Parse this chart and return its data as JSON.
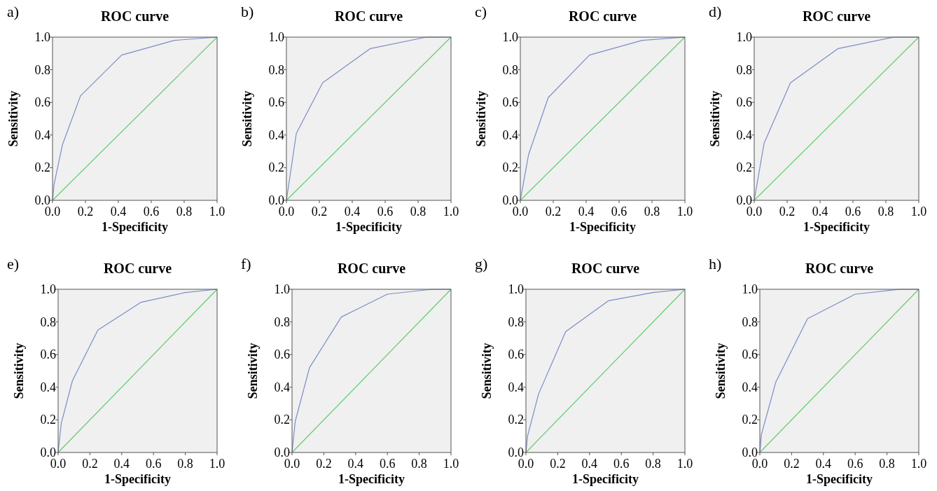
{
  "chart_data": [
    {
      "type": "line",
      "title": "ROC curve",
      "annotations": [
        "a)"
      ],
      "xlabel": "1-Specificity",
      "ylabel": "Sensitivity",
      "xlim": [
        0,
        1
      ],
      "ylim": [
        0,
        1
      ],
      "xticks": [
        {
          "value": 0,
          "label": "0.0"
        },
        {
          "value": 0.2,
          "label": "0.2"
        },
        {
          "value": 0.4,
          "label": "0.4"
        },
        {
          "value": 0.6,
          "label": "0.6"
        },
        {
          "value": 0.8,
          "label": "0.8"
        },
        {
          "value": 1,
          "label": "1.0"
        }
      ],
      "yticks": [
        {
          "value": 0,
          "label": "0.0"
        },
        {
          "value": 0.2,
          "label": "0.2"
        },
        {
          "value": 0.4,
          "label": "0.4"
        },
        {
          "value": 0.6,
          "label": "0.6"
        },
        {
          "value": 0.8,
          "label": "0.8"
        },
        {
          "value": 1,
          "label": "1.0"
        }
      ],
      "series": [
        {
          "color": "#7b8cc8",
          "x": [
            0,
            0.01,
            0.06,
            0.17,
            0.42,
            0.74,
            1
          ],
          "values": [
            0,
            0.1,
            0.34,
            0.64,
            0.89,
            0.98,
            1
          ]
        },
        {
          "color": "#62cc6c",
          "x": [
            0,
            1
          ],
          "values": [
            0,
            1
          ]
        }
      ]
    },
    {
      "type": "line",
      "title": "ROC curve",
      "annotations": [
        "b)"
      ],
      "xlabel": "1-Specificity",
      "ylabel": "Sensitivity",
      "xlim": [
        0,
        1
      ],
      "ylim": [
        0,
        1
      ],
      "xticks": [
        {
          "value": 0,
          "label": "0.0"
        },
        {
          "value": 0.2,
          "label": "0.2"
        },
        {
          "value": 0.4,
          "label": "0.4"
        },
        {
          "value": 0.6,
          "label": "0.6"
        },
        {
          "value": 0.8,
          "label": "0.8"
        },
        {
          "value": 1,
          "label": "1.0"
        }
      ],
      "yticks": [
        {
          "value": 0,
          "label": "0.0"
        },
        {
          "value": 0.2,
          "label": "0.2"
        },
        {
          "value": 0.4,
          "label": "0.4"
        },
        {
          "value": 0.6,
          "label": "0.6"
        },
        {
          "value": 0.8,
          "label": "0.8"
        },
        {
          "value": 1,
          "label": "1.0"
        }
      ],
      "series": [
        {
          "color": "#7b8cc8",
          "x": [
            0,
            0.06,
            0.22,
            0.51,
            0.85,
            1
          ],
          "values": [
            0,
            0.41,
            0.72,
            0.93,
            1,
            1
          ]
        },
        {
          "color": "#62cc6c",
          "x": [
            0,
            1
          ],
          "values": [
            0,
            1
          ]
        }
      ]
    },
    {
      "type": "line",
      "title": "ROC curve",
      "annotations": [
        "c)"
      ],
      "xlabel": "1-Specificity",
      "ylabel": "Sensitivity",
      "xlim": [
        0,
        1
      ],
      "ylim": [
        0,
        1
      ],
      "xticks": [
        {
          "value": 0,
          "label": "0.0"
        },
        {
          "value": 0.2,
          "label": "0.2"
        },
        {
          "value": 0.4,
          "label": "0.4"
        },
        {
          "value": 0.6,
          "label": "0.6"
        },
        {
          "value": 0.8,
          "label": "0.8"
        },
        {
          "value": 1,
          "label": "1.0"
        }
      ],
      "yticks": [
        {
          "value": 0,
          "label": "0.0"
        },
        {
          "value": 0.2,
          "label": "0.2"
        },
        {
          "value": 0.4,
          "label": "0.4"
        },
        {
          "value": 0.6,
          "label": "0.6"
        },
        {
          "value": 0.8,
          "label": "0.8"
        },
        {
          "value": 1,
          "label": "1.0"
        }
      ],
      "series": [
        {
          "color": "#7b8cc8",
          "x": [
            0,
            0.05,
            0.17,
            0.42,
            0.74,
            1
          ],
          "values": [
            0,
            0.28,
            0.63,
            0.89,
            0.98,
            1
          ]
        },
        {
          "color": "#62cc6c",
          "x": [
            0,
            1
          ],
          "values": [
            0,
            1
          ]
        }
      ]
    },
    {
      "type": "line",
      "title": "ROC curve",
      "annotations": [
        "d)"
      ],
      "xlabel": "1-Specificity",
      "ylabel": "Sensitivity",
      "xlim": [
        0,
        1
      ],
      "ylim": [
        0,
        1
      ],
      "xticks": [
        {
          "value": 0,
          "label": "0.0"
        },
        {
          "value": 0.2,
          "label": "0.2"
        },
        {
          "value": 0.4,
          "label": "0.4"
        },
        {
          "value": 0.6,
          "label": "0.6"
        },
        {
          "value": 0.8,
          "label": "0.8"
        },
        {
          "value": 1,
          "label": "1.0"
        }
      ],
      "yticks": [
        {
          "value": 0,
          "label": "0.0"
        },
        {
          "value": 0.2,
          "label": "0.2"
        },
        {
          "value": 0.4,
          "label": "0.4"
        },
        {
          "value": 0.6,
          "label": "0.6"
        },
        {
          "value": 0.8,
          "label": "0.8"
        },
        {
          "value": 1,
          "label": "1.0"
        }
      ],
      "series": [
        {
          "color": "#7b8cc8",
          "x": [
            0,
            0.06,
            0.22,
            0.51,
            0.85,
            1
          ],
          "values": [
            0,
            0.35,
            0.72,
            0.93,
            1,
            1
          ]
        },
        {
          "color": "#62cc6c",
          "x": [
            0,
            1
          ],
          "values": [
            0,
            1
          ]
        }
      ]
    },
    {
      "type": "line",
      "title": "ROC curve",
      "annotations": [
        "e)"
      ],
      "xlabel": "1-Specificity",
      "ylabel": "Sensitivity",
      "xlim": [
        0,
        1
      ],
      "ylim": [
        0,
        1
      ],
      "xticks": [
        {
          "value": 0,
          "label": "0.0"
        },
        {
          "value": 0.2,
          "label": "0.2"
        },
        {
          "value": 0.4,
          "label": "0.4"
        },
        {
          "value": 0.6,
          "label": "0.6"
        },
        {
          "value": 0.8,
          "label": "0.8"
        },
        {
          "value": 1,
          "label": "1.0"
        }
      ],
      "yticks": [
        {
          "value": 0,
          "label": "0.0"
        },
        {
          "value": 0.2,
          "label": "0.2"
        },
        {
          "value": 0.4,
          "label": "0.4"
        },
        {
          "value": 0.6,
          "label": "0.6"
        },
        {
          "value": 0.8,
          "label": "0.8"
        },
        {
          "value": 1,
          "label": "1.0"
        }
      ],
      "series": [
        {
          "color": "#7b8cc8",
          "x": [
            0,
            0.02,
            0.09,
            0.25,
            0.52,
            0.8,
            1
          ],
          "values": [
            0,
            0.18,
            0.44,
            0.75,
            0.92,
            0.98,
            1
          ]
        },
        {
          "color": "#62cc6c",
          "x": [
            0,
            1
          ],
          "values": [
            0,
            1
          ]
        }
      ]
    },
    {
      "type": "line",
      "title": "ROC curve",
      "annotations": [
        "f)"
      ],
      "xlabel": "1-Specificity",
      "ylabel": "Sensitivity",
      "xlim": [
        0,
        1
      ],
      "ylim": [
        0,
        1
      ],
      "xticks": [
        {
          "value": 0,
          "label": "0.0"
        },
        {
          "value": 0.2,
          "label": "0.2"
        },
        {
          "value": 0.4,
          "label": "0.4"
        },
        {
          "value": 0.6,
          "label": "0.6"
        },
        {
          "value": 0.8,
          "label": "0.8"
        },
        {
          "value": 1,
          "label": "1.0"
        }
      ],
      "yticks": [
        {
          "value": 0,
          "label": "0.0"
        },
        {
          "value": 0.2,
          "label": "0.2"
        },
        {
          "value": 0.4,
          "label": "0.4"
        },
        {
          "value": 0.6,
          "label": "0.6"
        },
        {
          "value": 0.8,
          "label": "0.8"
        },
        {
          "value": 1,
          "label": "1.0"
        }
      ],
      "series": [
        {
          "color": "#7b8cc8",
          "x": [
            0,
            0.02,
            0.11,
            0.31,
            0.6,
            0.88,
            1
          ],
          "values": [
            0,
            0.19,
            0.52,
            0.83,
            0.97,
            1,
            1
          ]
        },
        {
          "color": "#62cc6c",
          "x": [
            0,
            1
          ],
          "values": [
            0,
            1
          ]
        }
      ]
    },
    {
      "type": "line",
      "title": "ROC curve",
      "annotations": [
        "g)"
      ],
      "xlabel": "1-Specificity",
      "ylabel": "Sensitivity",
      "xlim": [
        0,
        1
      ],
      "ylim": [
        0,
        1
      ],
      "xticks": [
        {
          "value": 0,
          "label": "0.0"
        },
        {
          "value": 0.2,
          "label": "0.2"
        },
        {
          "value": 0.4,
          "label": "0.4"
        },
        {
          "value": 0.6,
          "label": "0.6"
        },
        {
          "value": 0.8,
          "label": "0.8"
        },
        {
          "value": 1,
          "label": "1.0"
        }
      ],
      "yticks": [
        {
          "value": 0,
          "label": "0.0"
        },
        {
          "value": 0.2,
          "label": "0.2"
        },
        {
          "value": 0.4,
          "label": "0.4"
        },
        {
          "value": 0.6,
          "label": "0.6"
        },
        {
          "value": 0.8,
          "label": "0.8"
        },
        {
          "value": 1,
          "label": "1.0"
        }
      ],
      "series": [
        {
          "color": "#7b8cc8",
          "x": [
            0,
            0.01,
            0.08,
            0.25,
            0.52,
            0.8,
            1
          ],
          "values": [
            0,
            0.1,
            0.36,
            0.74,
            0.93,
            0.98,
            1
          ]
        },
        {
          "color": "#62cc6c",
          "x": [
            0,
            1
          ],
          "values": [
            0,
            1
          ]
        }
      ]
    },
    {
      "type": "line",
      "title": "ROC curve",
      "annotations": [
        "h)"
      ],
      "xlabel": "1-Specificity",
      "ylabel": "Sensitivity",
      "xlim": [
        0,
        1
      ],
      "ylim": [
        0,
        1
      ],
      "xticks": [
        {
          "value": 0,
          "label": "0.0"
        },
        {
          "value": 0.2,
          "label": "0.2"
        },
        {
          "value": 0.4,
          "label": "0.4"
        },
        {
          "value": 0.6,
          "label": "0.6"
        },
        {
          "value": 0.8,
          "label": "0.8"
        },
        {
          "value": 1,
          "label": "1.0"
        }
      ],
      "yticks": [
        {
          "value": 0,
          "label": "0.0"
        },
        {
          "value": 0.2,
          "label": "0.2"
        },
        {
          "value": 0.4,
          "label": "0.4"
        },
        {
          "value": 0.6,
          "label": "0.6"
        },
        {
          "value": 0.8,
          "label": "0.8"
        },
        {
          "value": 1,
          "label": "1.0"
        }
      ],
      "series": [
        {
          "color": "#7b8cc8",
          "x": [
            0,
            0.01,
            0.1,
            0.3,
            0.6,
            0.88,
            1
          ],
          "values": [
            0,
            0.11,
            0.43,
            0.82,
            0.97,
            1,
            1
          ]
        },
        {
          "color": "#62cc6c",
          "x": [
            0,
            1
          ],
          "values": [
            0,
            1
          ]
        }
      ]
    }
  ]
}
